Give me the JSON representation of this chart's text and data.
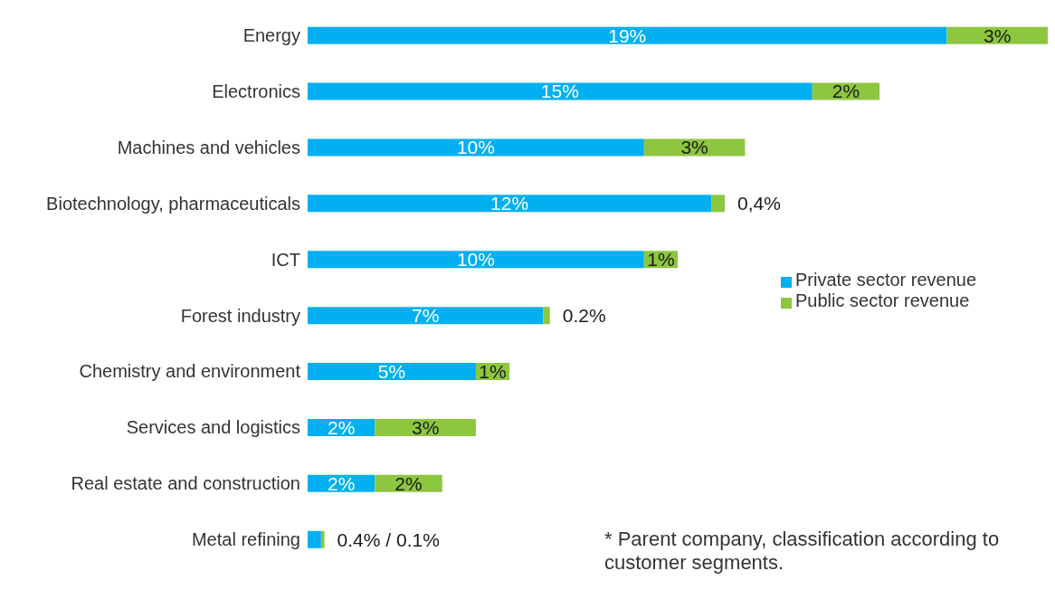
{
  "chart_data": {
    "type": "bar",
    "orientation": "horizontal",
    "stacked": true,
    "legend": "right",
    "categories": [
      "Energy",
      "Electronics",
      "Machines and vehicles",
      "Biotechnology, pharmaceuticals",
      "ICT",
      "Forest industry",
      "Chemistry and environment",
      "Services and logistics",
      "Real estate and construction",
      "Metal refining"
    ],
    "series": [
      {
        "name": "Private sector revenue",
        "color": "#00b0f0",
        "values": [
          19,
          15,
          10,
          12,
          10,
          7,
          5,
          2,
          2,
          0.4
        ],
        "value_labels": [
          "19%",
          "15%",
          "10%",
          "12%",
          "10%",
          "7%",
          "5%",
          "2%",
          "2%",
          null
        ]
      },
      {
        "name": "Public sector revenue",
        "color": "#8dc63f",
        "values": [
          3,
          2,
          3,
          0.4,
          1,
          0.2,
          1,
          3,
          2,
          0.1
        ],
        "value_labels": [
          "3%",
          "2%",
          "3%",
          "0,4%",
          "1%",
          "0.2%",
          "1%",
          "3%",
          "2%",
          "0.4% / 0.1%"
        ]
      }
    ],
    "annotations": [
      "* Parent company, classification according to customer segments."
    ]
  }
}
